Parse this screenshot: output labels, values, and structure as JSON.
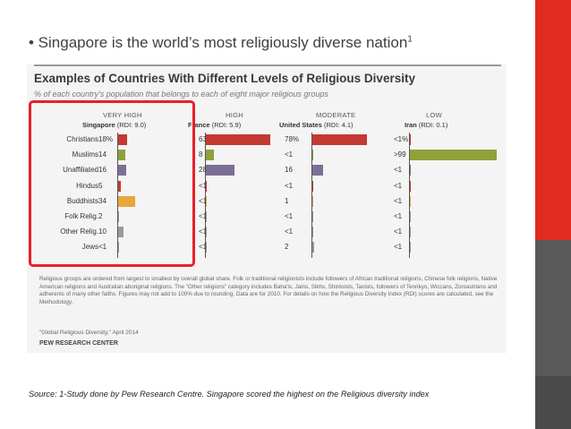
{
  "slide": {
    "bullet_text": "• Singapore is the world’s most religiously diverse nation",
    "bullet_sup": "1",
    "source_note": "Source: 1-Study done by Pew Research Centre. Singapore scored the highest on the Religious diversity index",
    "colors": {
      "sidebar_top": "#e02b20",
      "sidebar_mid": "#595959",
      "sidebar_bottom": "#4a4a4a",
      "highlight_box": "#e8202a"
    }
  },
  "chart_data": {
    "type": "bar",
    "title": "Examples of Countries With Different Levels of Religious Diversity",
    "subtitle": "% of each country's population that belongs to each of eight major religious groups",
    "categories": [
      "Christians",
      "Muslims",
      "Unaffiliated",
      "Hindus",
      "Buddhists",
      "Folk Relig.",
      "Other Relig.",
      "Jews"
    ],
    "category_colors": [
      "#c43a32",
      "#8fa23a",
      "#7b6f96",
      "#c43a32",
      "#e8a63a",
      "#9a9a9a",
      "#9a9a9a",
      "#9a9a9a"
    ],
    "series": [
      {
        "level": "VERY HIGH",
        "name": "Singapore",
        "rdi": "(RDI: 9.0)",
        "values": [
          18,
          14,
          16,
          5,
          34,
          2,
          10,
          0.5
        ],
        "labels": [
          "18%",
          "14",
          "16",
          "5",
          "34",
          "2",
          "10",
          "<1"
        ]
      },
      {
        "level": "HIGH",
        "name": "France",
        "rdi": "(RDI: 5.9)",
        "values": [
          63,
          8,
          28,
          0.5,
          0.5,
          0.5,
          0.5,
          0.5
        ],
        "labels": [
          "63%",
          "8",
          "28",
          "<1",
          "<1",
          "<1",
          "<1",
          "<1"
        ]
      },
      {
        "level": "MODERATE",
        "name": "United States",
        "rdi": "(RDI: 4.1)",
        "values": [
          78,
          0.5,
          16,
          0.5,
          1,
          0.5,
          0.5,
          2
        ],
        "labels": [
          "78%",
          "<1",
          "16",
          "<1",
          "1",
          "<1",
          "<1",
          "2"
        ]
      },
      {
        "level": "LOW",
        "name": "Iran",
        "rdi": "(RDI: 0.1)",
        "values": [
          0.5,
          99,
          0.5,
          0.5,
          0.5,
          0.5,
          0.5,
          0.5
        ],
        "labels": [
          "<1%",
          ">99",
          "<1",
          "<1",
          "<1",
          "<1",
          "<1",
          "<1"
        ]
      }
    ],
    "footnote": "Religious groups are ordered from largest to smallest by overall global share. Folk or traditional religionists include followers of African traditional religions, Chinese folk religions, Native American religions and Australian aboriginal religions. The \"Other religions\" category includes Baha'is, Jains, Sikhs, Shintoists, Taoists, followers of Tenrikyo, Wiccans, Zoroastrians and adherents of many other faiths. Figures may not add to 100% due to rounding. Data are for 2010. For details on how the Religious Diversity Index (RDI) scores are calculated, see the Methodology.",
    "source": "\"Global Religious Diversity,\" April 2014",
    "credit": "PEW RESEARCH CENTER"
  }
}
